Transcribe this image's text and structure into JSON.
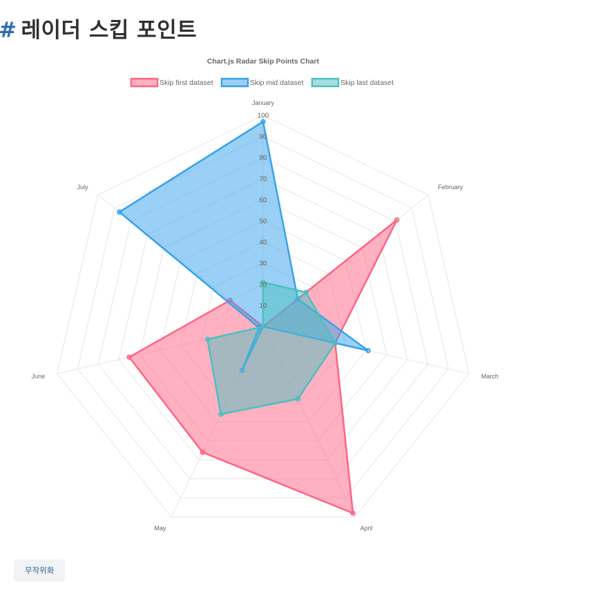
{
  "page": {
    "hash": "#",
    "title": "레이더 스킵 포인트"
  },
  "controls": {
    "randomize_label": "무작위화"
  },
  "chart_data": {
    "type": "radar",
    "title": "Chart.js Radar Skip Points Chart",
    "labels": [
      "January",
      "February",
      "March",
      "April",
      "May",
      "June",
      "July"
    ],
    "r_range": [
      0,
      100
    ],
    "ticks": [
      10,
      20,
      30,
      40,
      50,
      60,
      70,
      80,
      90,
      100
    ],
    "grid": true,
    "legend_position": "top",
    "series": [
      {
        "name": "Skip first dataset",
        "values": [
          null,
          81,
          35,
          98,
          66,
          65,
          20
        ],
        "border_color": "#ff6384",
        "fill_color": "rgba(255,99,132,0.5)"
      },
      {
        "name": "Skip mid dataset",
        "values": [
          97,
          21,
          51,
          null,
          23,
          2,
          87
        ],
        "border_color": "#36a2eb",
        "fill_color": "rgba(54,162,235,0.5)"
      },
      {
        "name": "Skip last dataset",
        "values": [
          21,
          26,
          35,
          38,
          46,
          27,
          null
        ],
        "border_color": "#4bc0c0",
        "fill_color": "rgba(75,192,192,0.5)"
      }
    ]
  }
}
